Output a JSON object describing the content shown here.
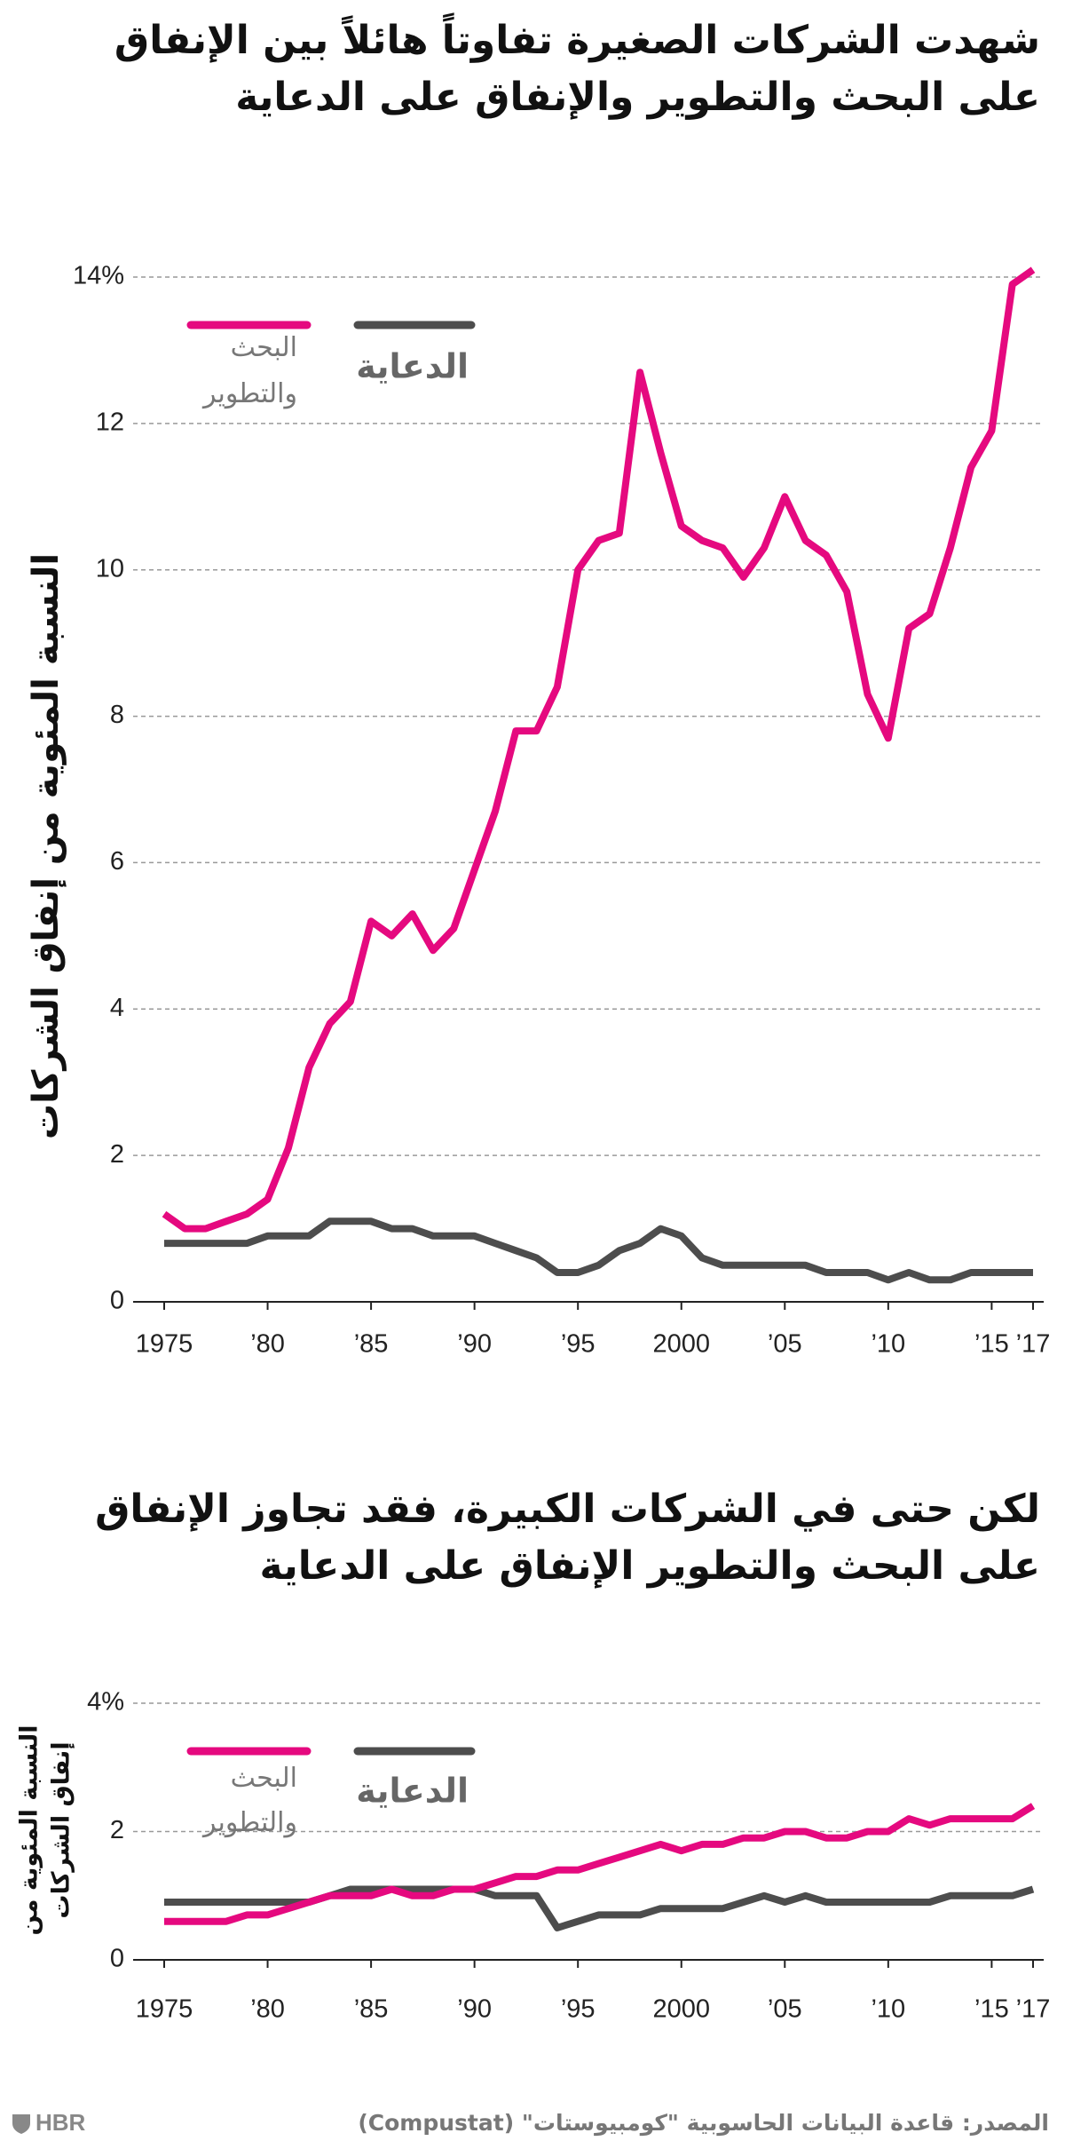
{
  "chart_data": [
    {
      "type": "line",
      "title": "شهدت الشركات الصغيرة تفاوتاً هائلاً بين الإنفاق على البحث والتطوير والإنفاق على الدعاية",
      "ylabel": [
        "النسبة المئوية من إنفاق الشركات"
      ],
      "x": [
        1975,
        1976,
        1977,
        1978,
        1979,
        1980,
        1981,
        1982,
        1983,
        1984,
        1985,
        1986,
        1987,
        1988,
        1989,
        1990,
        1991,
        1992,
        1993,
        1994,
        1995,
        1996,
        1997,
        1998,
        1999,
        2000,
        2001,
        2002,
        2003,
        2004,
        2005,
        2006,
        2007,
        2008,
        2009,
        2010,
        2011,
        2012,
        2013,
        2014,
        2015,
        2016,
        2017
      ],
      "series": [
        {
          "name": "البحث والتطوير",
          "color": "#e5097f",
          "values": [
            1.2,
            1.0,
            1.0,
            1.1,
            1.2,
            1.4,
            2.1,
            3.2,
            3.8,
            4.1,
            5.2,
            5.0,
            5.3,
            4.8,
            5.1,
            5.9,
            6.7,
            7.8,
            7.8,
            8.4,
            10.0,
            10.4,
            10.5,
            12.7,
            11.6,
            10.6,
            10.4,
            10.3,
            9.9,
            10.3,
            11.0,
            10.4,
            10.2,
            9.7,
            8.3,
            7.7,
            9.2,
            9.4,
            10.3,
            11.4,
            11.9,
            13.9,
            14.1
          ]
        },
        {
          "name": "الدعاية",
          "color": "#4d4d4d",
          "values": [
            0.8,
            0.8,
            0.8,
            0.8,
            0.8,
            0.9,
            0.9,
            0.9,
            1.1,
            1.1,
            1.1,
            1.0,
            1.0,
            0.9,
            0.9,
            0.9,
            0.8,
            0.7,
            0.6,
            0.4,
            0.4,
            0.5,
            0.7,
            0.8,
            1.0,
            0.9,
            0.6,
            0.5,
            0.5,
            0.5,
            0.5,
            0.5,
            0.4,
            0.4,
            0.4,
            0.3,
            0.4,
            0.3,
            0.3,
            0.4,
            0.4,
            0.4,
            0.4
          ]
        }
      ],
      "xlim": [
        1975,
        2017
      ],
      "xticks": [
        1975,
        {
          "value": 1980,
          "label": "’80"
        },
        {
          "value": 1985,
          "label": "’85"
        },
        {
          "value": 1990,
          "label": "’90"
        },
        {
          "value": 1995,
          "label": "’95"
        },
        2000,
        {
          "value": 2005,
          "label": "’05"
        },
        {
          "value": 2010,
          "label": "’10"
        },
        {
          "value": 2015,
          "label": "’15"
        },
        {
          "value": 2017,
          "label": "’17"
        }
      ],
      "ylim": [
        0,
        14
      ],
      "yticks": [
        0,
        2,
        4,
        6,
        8,
        10,
        12,
        {
          "value": 14,
          "label": "14%"
        }
      ],
      "grid": true
    },
    {
      "type": "line",
      "title": "لكن حتى في الشركات الكبيرة، فقد تجاوز الإنفاق على البحث والتطوير الإنفاق على الدعاية",
      "ylabel": [
        "النسبة المئوية من",
        "إنفاق الشركات"
      ],
      "x": [
        1975,
        1976,
        1977,
        1978,
        1979,
        1980,
        1981,
        1982,
        1983,
        1984,
        1985,
        1986,
        1987,
        1988,
        1989,
        1990,
        1991,
        1992,
        1993,
        1994,
        1995,
        1996,
        1997,
        1998,
        1999,
        2000,
        2001,
        2002,
        2003,
        2004,
        2005,
        2006,
        2007,
        2008,
        2009,
        2010,
        2011,
        2012,
        2013,
        2014,
        2015,
        2016,
        2017
      ],
      "series": [
        {
          "name": "البحث والتطوير",
          "color": "#e5097f",
          "values": [
            0.6,
            0.6,
            0.6,
            0.6,
            0.7,
            0.7,
            0.8,
            0.9,
            1.0,
            1.0,
            1.0,
            1.1,
            1.0,
            1.0,
            1.1,
            1.1,
            1.2,
            1.3,
            1.3,
            1.4,
            1.4,
            1.5,
            1.6,
            1.7,
            1.8,
            1.7,
            1.8,
            1.8,
            1.9,
            1.9,
            2.0,
            2.0,
            1.9,
            1.9,
            2.0,
            2.0,
            2.2,
            2.1,
            2.2,
            2.2,
            2.2,
            2.2,
            2.4
          ]
        },
        {
          "name": "الدعاية",
          "color": "#4d4d4d",
          "values": [
            0.9,
            0.9,
            0.9,
            0.9,
            0.9,
            0.9,
            0.9,
            0.9,
            1.0,
            1.1,
            1.1,
            1.1,
            1.1,
            1.1,
            1.1,
            1.1,
            1.0,
            1.0,
            1.0,
            0.5,
            0.6,
            0.7,
            0.7,
            0.7,
            0.8,
            0.8,
            0.8,
            0.8,
            0.9,
            1.0,
            0.9,
            1.0,
            0.9,
            0.9,
            0.9,
            0.9,
            0.9,
            0.9,
            1.0,
            1.0,
            1.0,
            1.0,
            1.1
          ]
        }
      ],
      "xlim": [
        1975,
        2017
      ],
      "xticks": [
        1975,
        {
          "value": 1980,
          "label": "’80"
        },
        {
          "value": 1985,
          "label": "’85"
        },
        {
          "value": 1990,
          "label": "’90"
        },
        {
          "value": 1995,
          "label": "’95"
        },
        2000,
        {
          "value": 2005,
          "label": "’05"
        },
        {
          "value": 2010,
          "label": "’10"
        },
        {
          "value": 2015,
          "label": "’15"
        },
        {
          "value": 2017,
          "label": "’17"
        }
      ],
      "ylim": [
        0,
        4
      ],
      "yticks": [
        0,
        2,
        {
          "value": 4,
          "label": "4%"
        }
      ],
      "grid": true
    }
  ],
  "source": "المصدر: قاعدة البيانات الحاسوبية \"كومبيوستات\" (Compustat)",
  "logo": "HBR"
}
